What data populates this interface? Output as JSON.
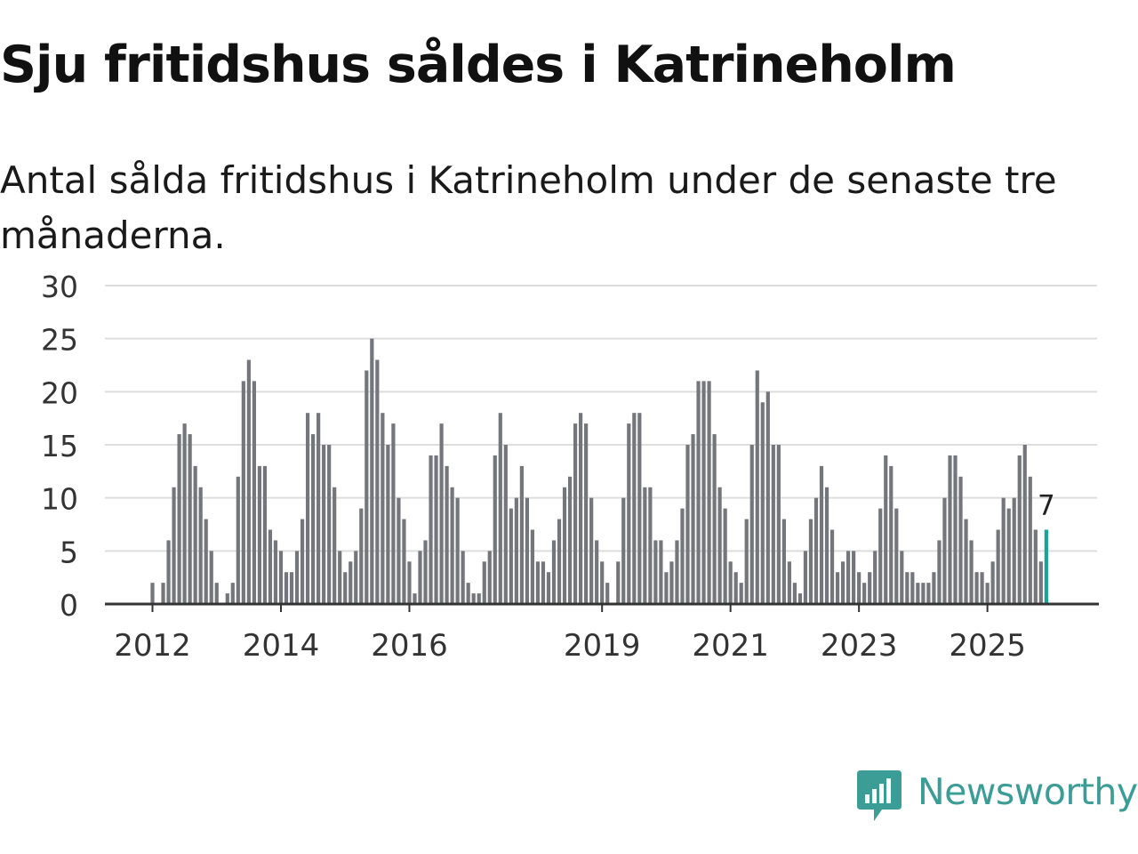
{
  "title": "Sju fritidshus såldes i Katrineholm",
  "subtitle": "Antal sålda fritidshus i Katrineholm under de senaste tre månaderna.",
  "brand": {
    "name": "Newsworthy",
    "color": "#3c9c96",
    "icon": "newsworthy-logo-icon"
  },
  "colors": {
    "bar": "#75757c",
    "highlight": "#17a398",
    "grid": "#dddddd",
    "axis": "#333333"
  },
  "chart_data": {
    "type": "bar",
    "ylim": [
      0,
      30
    ],
    "yticks": [
      0,
      5,
      10,
      15,
      20,
      25,
      30
    ],
    "grid": true,
    "x_start": "2012-01",
    "xticks": [
      "2012",
      "2014",
      "2016",
      "2019",
      "2021",
      "2023",
      "2025"
    ],
    "values": [
      2,
      0,
      2,
      6,
      11,
      16,
      17,
      16,
      13,
      11,
      8,
      5,
      2,
      0,
      1,
      2,
      12,
      21,
      23,
      21,
      13,
      13,
      7,
      6,
      5,
      3,
      3,
      5,
      8,
      18,
      16,
      18,
      15,
      15,
      11,
      5,
      3,
      4,
      5,
      9,
      22,
      25,
      23,
      18,
      15,
      17,
      10,
      8,
      4,
      1,
      5,
      6,
      14,
      14,
      17,
      13,
      11,
      10,
      5,
      2,
      1,
      1,
      4,
      5,
      14,
      18,
      15,
      9,
      10,
      13,
      10,
      7,
      4,
      4,
      3,
      6,
      8,
      11,
      12,
      17,
      18,
      17,
      10,
      6,
      4,
      2,
      0,
      4,
      10,
      17,
      18,
      18,
      11,
      11,
      6,
      6,
      3,
      4,
      6,
      9,
      15,
      16,
      21,
      21,
      21,
      16,
      11,
      9,
      4,
      3,
      2,
      8,
      15,
      22,
      19,
      20,
      15,
      15,
      8,
      4,
      2,
      1,
      5,
      8,
      10,
      13,
      11,
      7,
      3,
      4,
      5,
      5,
      3,
      2,
      3,
      5,
      9,
      14,
      13,
      9,
      5,
      3,
      3,
      2,
      2,
      2,
      3,
      6,
      10,
      14,
      14,
      12,
      8,
      6,
      3,
      3,
      2,
      4,
      7,
      10,
      9,
      10,
      14,
      15,
      12,
      7,
      4,
      7
    ],
    "highlight_last": true,
    "last_label": "7"
  }
}
